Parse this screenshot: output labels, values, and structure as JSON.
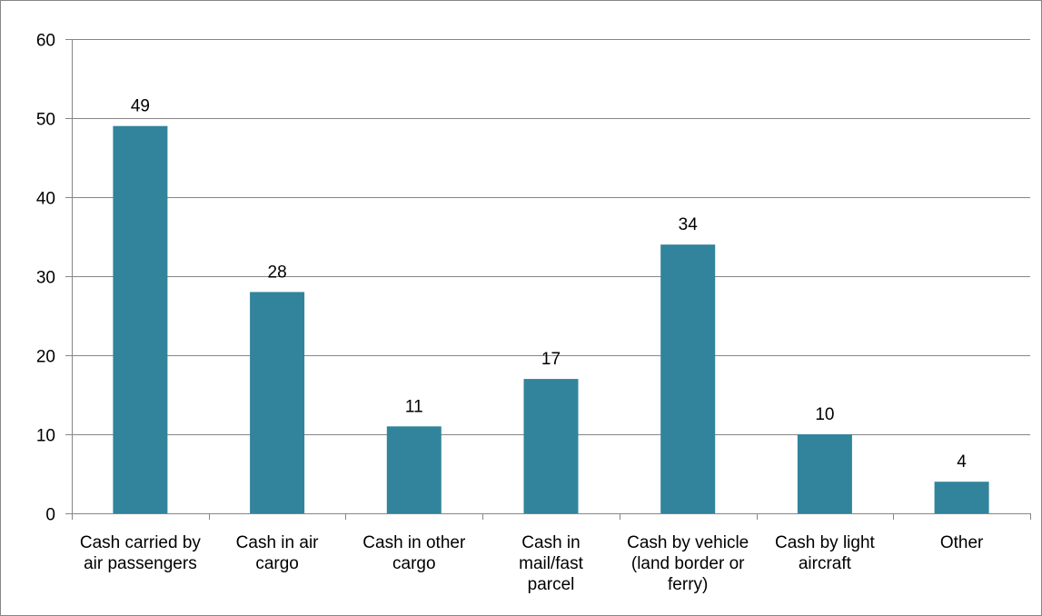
{
  "chart_data": {
    "type": "bar",
    "title": "",
    "xlabel": "",
    "ylabel": "",
    "categories": [
      [
        "Cash carried by",
        "air passengers"
      ],
      [
        "Cash in air",
        "cargo"
      ],
      [
        "Cash in other",
        "cargo"
      ],
      [
        "Cash in",
        "mail/fast",
        "parcel"
      ],
      [
        "Cash by vehicle",
        "(land border or",
        "ferry)"
      ],
      [
        "Cash by light",
        "aircraft"
      ],
      [
        "Other"
      ]
    ],
    "values": [
      49,
      28,
      11,
      17,
      34,
      10,
      4
    ],
    "ylim": [
      0,
      60
    ],
    "yticks": [
      0,
      10,
      20,
      30,
      40,
      50,
      60
    ],
    "grid": true,
    "legend": "none",
    "bar_color": "#31849B",
    "gridline_color": "#868686",
    "axis_color": "#868686",
    "frame_color": "#868686"
  }
}
